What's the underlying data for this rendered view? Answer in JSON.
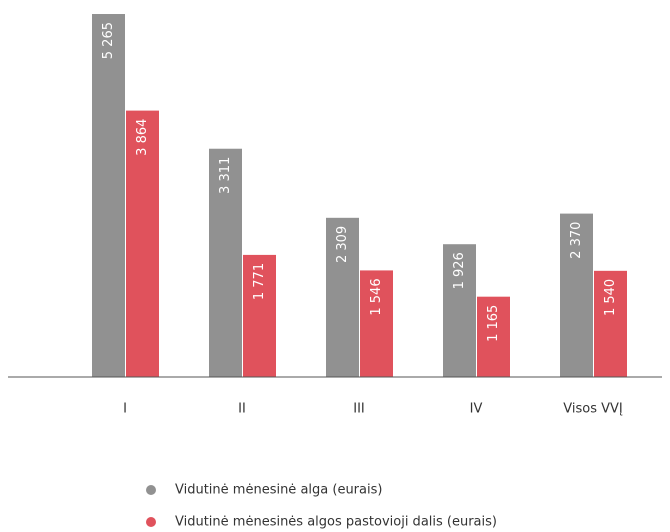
{
  "chart_data": {
    "type": "bar",
    "categories": [
      "I",
      "II",
      "III",
      "IV",
      "Visos VVĮ"
    ],
    "series": [
      {
        "name": "Vidutinė mėnesinė alga (eurais)",
        "color": "#919191",
        "values": [
          5265,
          3311,
          2309,
          1926,
          2370
        ],
        "value_labels": [
          "5 265",
          "3 311",
          "2 309",
          "1 926",
          "2 370"
        ]
      },
      {
        "name": "Vidutinė mėnesinės algos pastovioji dalis (eurais)",
        "color": "#e0525c",
        "values": [
          3864,
          1771,
          1546,
          1165,
          1540
        ],
        "value_labels": [
          "3 864",
          "1 771",
          "1 546",
          "1 165",
          "1 540"
        ]
      }
    ],
    "ylim": [
      0,
      5300
    ]
  }
}
